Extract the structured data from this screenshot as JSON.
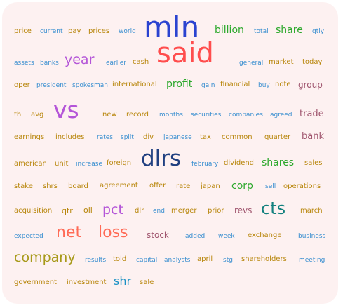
{
  "colors": {
    "background": "#fdf1f1",
    "gold": "#b8860b",
    "olive": "#a89a1a",
    "blue": "#3a8fd0",
    "navy": "#1f3f80",
    "royal_blue": "#2a43d0",
    "red": "#ff4d4d",
    "coral": "#ff6a55",
    "green": "#2ca82c",
    "purple": "#b455d8",
    "teal": "#12807e",
    "cyan": "#1890c4",
    "mauve": "#a0566f"
  },
  "words": [
    {
      "text": "price",
      "color": "gold"
    },
    {
      "text": "current",
      "color": "blue"
    },
    {
      "text": "pay",
      "color": "gold"
    },
    {
      "text": "prices",
      "color": "gold"
    },
    {
      "text": "world",
      "color": "blue"
    },
    {
      "text": "mln",
      "color": "royal_blue"
    },
    {
      "text": "billion",
      "color": "green"
    },
    {
      "text": "total",
      "color": "blue"
    },
    {
      "text": "share",
      "color": "green"
    },
    {
      "text": "qtly",
      "color": "blue"
    },
    {
      "text": "assets",
      "color": "blue"
    },
    {
      "text": "banks",
      "color": "blue"
    },
    {
      "text": "year",
      "color": "purple"
    },
    {
      "text": "earlier",
      "color": "blue"
    },
    {
      "text": "cash",
      "color": "gold"
    },
    {
      "text": "said",
      "color": "red"
    },
    {
      "text": "general",
      "color": "blue"
    },
    {
      "text": "market",
      "color": "gold"
    },
    {
      "text": "today",
      "color": "gold"
    },
    {
      "text": "oper",
      "color": "gold"
    },
    {
      "text": "president",
      "color": "blue"
    },
    {
      "text": "spokesman",
      "color": "blue"
    },
    {
      "text": "international",
      "color": "gold"
    },
    {
      "text": "profit",
      "color": "green"
    },
    {
      "text": "gain",
      "color": "blue"
    },
    {
      "text": "financial",
      "color": "gold"
    },
    {
      "text": "buy",
      "color": "blue"
    },
    {
      "text": "note",
      "color": "gold"
    },
    {
      "text": "group",
      "color": "mauve"
    },
    {
      "text": "th",
      "color": "gold"
    },
    {
      "text": "avg",
      "color": "gold"
    },
    {
      "text": "vs",
      "color": "purple"
    },
    {
      "text": "new",
      "color": "gold"
    },
    {
      "text": "record",
      "color": "gold"
    },
    {
      "text": "months",
      "color": "blue"
    },
    {
      "text": "securities",
      "color": "blue"
    },
    {
      "text": "companies",
      "color": "blue"
    },
    {
      "text": "agreed",
      "color": "blue"
    },
    {
      "text": "trade",
      "color": "mauve"
    },
    {
      "text": "earnings",
      "color": "gold"
    },
    {
      "text": "includes",
      "color": "gold"
    },
    {
      "text": "rates",
      "color": "blue"
    },
    {
      "text": "split",
      "color": "blue"
    },
    {
      "text": "div",
      "color": "gold"
    },
    {
      "text": "japanese",
      "color": "blue"
    },
    {
      "text": "tax",
      "color": "gold"
    },
    {
      "text": "common",
      "color": "gold"
    },
    {
      "text": "quarter",
      "color": "gold"
    },
    {
      "text": "bank",
      "color": "mauve"
    },
    {
      "text": "american",
      "color": "gold"
    },
    {
      "text": "unit",
      "color": "gold"
    },
    {
      "text": "increase",
      "color": "blue"
    },
    {
      "text": "foreign",
      "color": "gold"
    },
    {
      "text": "dlrs",
      "color": "navy"
    },
    {
      "text": "february",
      "color": "blue"
    },
    {
      "text": "dividend",
      "color": "gold"
    },
    {
      "text": "shares",
      "color": "green"
    },
    {
      "text": "sales",
      "color": "gold"
    },
    {
      "text": "stake",
      "color": "gold"
    },
    {
      "text": "shrs",
      "color": "gold"
    },
    {
      "text": "board",
      "color": "gold"
    },
    {
      "text": "agreement",
      "color": "gold"
    },
    {
      "text": "offer",
      "color": "gold"
    },
    {
      "text": "rate",
      "color": "gold"
    },
    {
      "text": "japan",
      "color": "gold"
    },
    {
      "text": "corp",
      "color": "green"
    },
    {
      "text": "sell",
      "color": "blue"
    },
    {
      "text": "operations",
      "color": "gold"
    },
    {
      "text": "acquisition",
      "color": "gold"
    },
    {
      "text": "qtr",
      "color": "gold"
    },
    {
      "text": "oil",
      "color": "gold"
    },
    {
      "text": "pct",
      "color": "purple"
    },
    {
      "text": "dlr",
      "color": "gold"
    },
    {
      "text": "end",
      "color": "blue"
    },
    {
      "text": "merger",
      "color": "gold"
    },
    {
      "text": "prior",
      "color": "gold"
    },
    {
      "text": "revs",
      "color": "mauve"
    },
    {
      "text": "cts",
      "color": "teal"
    },
    {
      "text": "march",
      "color": "gold"
    },
    {
      "text": "expected",
      "color": "blue"
    },
    {
      "text": "net",
      "color": "coral"
    },
    {
      "text": "loss",
      "color": "coral"
    },
    {
      "text": "stock",
      "color": "mauve"
    },
    {
      "text": "added",
      "color": "blue"
    },
    {
      "text": "week",
      "color": "blue"
    },
    {
      "text": "exchange",
      "color": "gold"
    },
    {
      "text": "business",
      "color": "blue"
    },
    {
      "text": "company",
      "color": "olive"
    },
    {
      "text": "results",
      "color": "blue"
    },
    {
      "text": "told",
      "color": "gold"
    },
    {
      "text": "capital",
      "color": "blue"
    },
    {
      "text": "analysts",
      "color": "blue"
    },
    {
      "text": "april",
      "color": "gold"
    },
    {
      "text": "stg",
      "color": "blue"
    },
    {
      "text": "shareholders",
      "color": "gold"
    },
    {
      "text": "meeting",
      "color": "blue"
    },
    {
      "text": "government",
      "color": "gold"
    },
    {
      "text": "investment",
      "color": "gold"
    },
    {
      "text": "shr",
      "color": "cyan"
    },
    {
      "text": "sale",
      "color": "gold"
    }
  ]
}
